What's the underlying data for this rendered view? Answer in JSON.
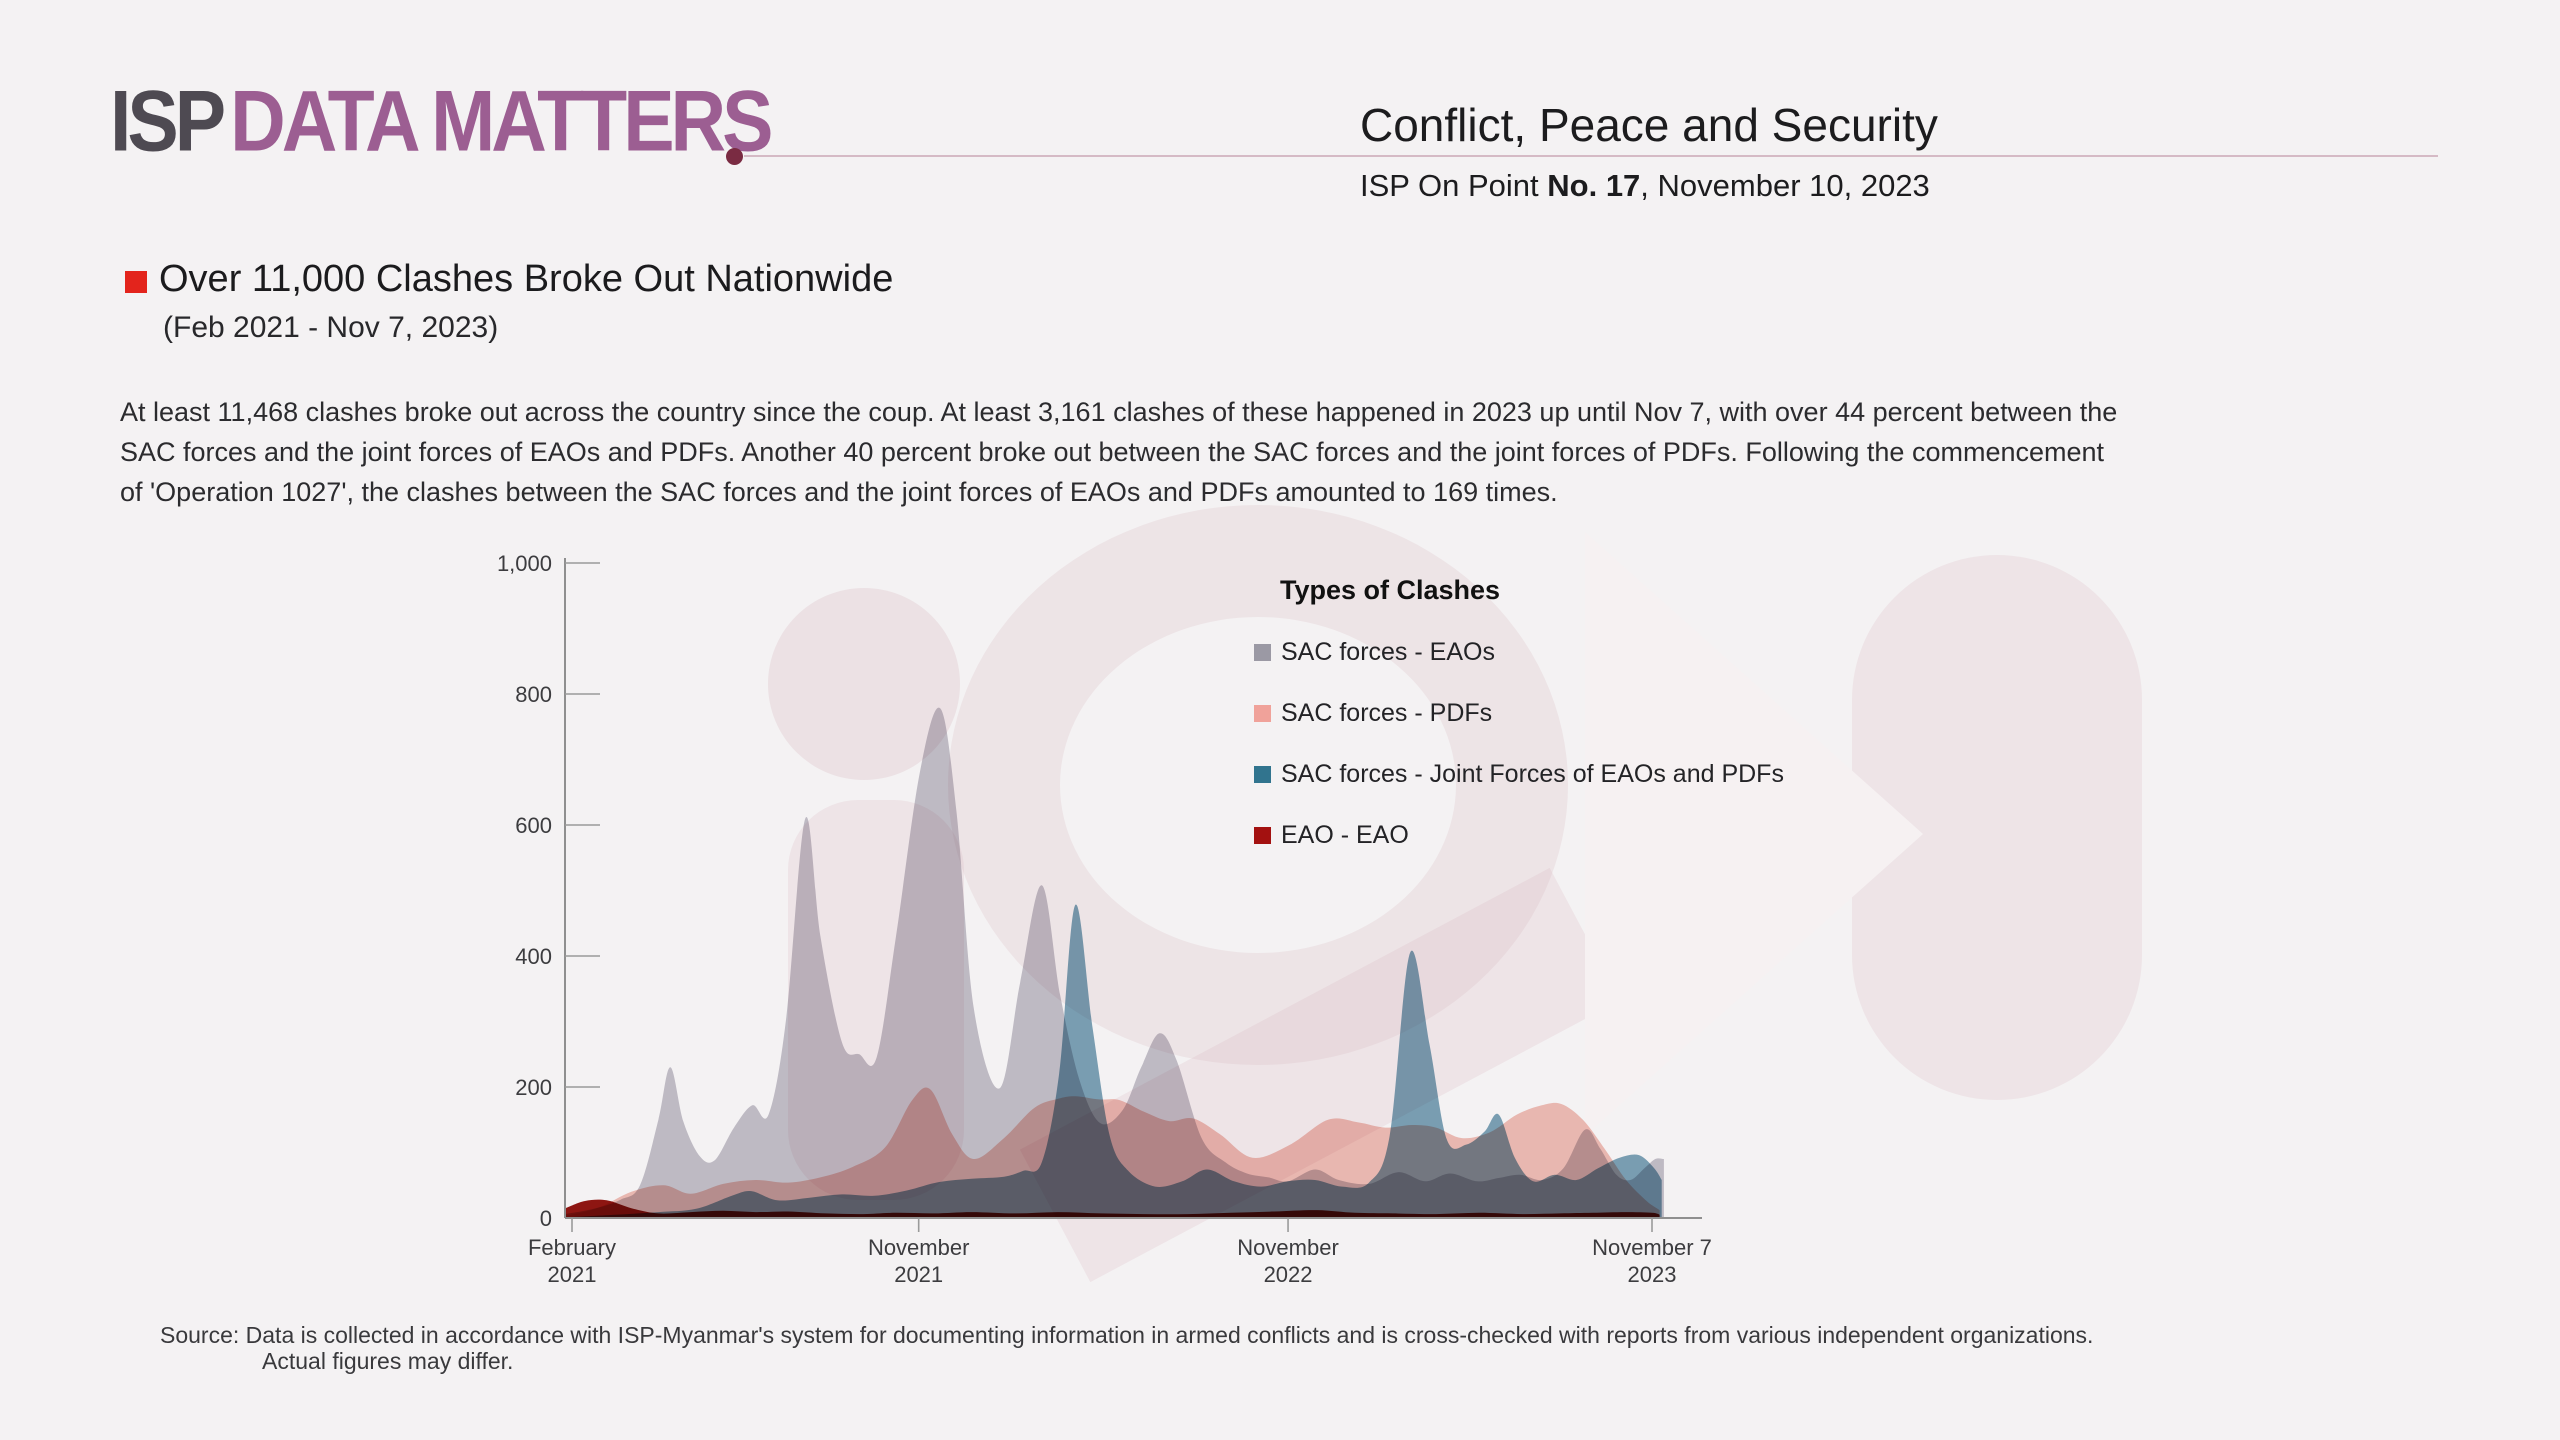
{
  "header": {
    "logo_isp": "ISP",
    "logo_rest": "DATA MATTERS",
    "topic": "Conflict, Peace and Security",
    "issue_prefix": "ISP On Point ",
    "issue_no": "No. 17",
    "issue_suffix": ", November 10, 2023"
  },
  "section": {
    "title": "Over 11,000 Clashes Broke Out Nationwide",
    "subtitle": "(Feb 2021 - Nov 7, 2023)"
  },
  "paragraph": {
    "line1": "At least 11,468 clashes broke out across the country since the coup. At least 3,161 clashes of these happened in 2023 up until Nov 7, with over 44 percent between the",
    "line2": "SAC forces and the joint forces of EAOs and PDFs. Another 40 percent broke out between the SAC forces and the joint forces of PDFs. Following the commencement",
    "line3": "of 'Operation 1027', the clashes between the SAC forces and the joint forces of EAOs and PDFs amounted to 169 times."
  },
  "source": {
    "line1": "Source: Data is collected in accordance with ISP-Myanmar's system for documenting information in armed conflicts and is cross-checked with reports from various independent organizations.",
    "line2": "Actual figures may differ."
  },
  "chart_data": {
    "type": "area",
    "legend_title": "Types of Clashes",
    "legend_position": "top-right",
    "grid": false,
    "ylim": [
      0,
      1000
    ],
    "y_axis_ticks": [
      {
        "value": 1000,
        "label": "1,000"
      },
      {
        "value": 800,
        "label": "800"
      },
      {
        "value": 600,
        "label": "600"
      },
      {
        "value": 400,
        "label": "400"
      },
      {
        "value": 200,
        "label": "200"
      },
      {
        "value": 0,
        "label": "0"
      }
    ],
    "x_axis_ticks": [
      {
        "pos": 0.0,
        "line1": "February",
        "line2": "2021"
      },
      {
        "pos": 0.321,
        "line1": "November",
        "line2": "2021"
      },
      {
        "pos": 0.663,
        "line1": "November",
        "line2": "2022"
      },
      {
        "pos": 1.0,
        "line1": "November 7",
        "line2": "2023"
      }
    ],
    "x_unit": "fraction of timeline Feb 2021 to Nov 7 2023",
    "y_unit": "number of clashes",
    "series": [
      {
        "name": "SAC forces - EAOs",
        "fill": "#c7c4cd",
        "legend_color": "#9b99a4",
        "points": [
          [
            -0.006,
            6
          ],
          [
            0.02,
            14
          ],
          [
            0.045,
            28
          ],
          [
            0.063,
            50
          ],
          [
            0.08,
            150
          ],
          [
            0.091,
            230
          ],
          [
            0.103,
            148
          ],
          [
            0.118,
            95
          ],
          [
            0.132,
            88
          ],
          [
            0.15,
            138
          ],
          [
            0.167,
            172
          ],
          [
            0.182,
            158
          ],
          [
            0.198,
            300
          ],
          [
            0.216,
            610
          ],
          [
            0.23,
            430
          ],
          [
            0.25,
            268
          ],
          [
            0.266,
            250
          ],
          [
            0.282,
            245
          ],
          [
            0.3,
            430
          ],
          [
            0.322,
            680
          ],
          [
            0.341,
            778
          ],
          [
            0.356,
            620
          ],
          [
            0.372,
            320
          ],
          [
            0.396,
            198
          ],
          [
            0.415,
            360
          ],
          [
            0.435,
            508
          ],
          [
            0.452,
            340
          ],
          [
            0.47,
            210
          ],
          [
            0.489,
            145
          ],
          [
            0.51,
            165
          ],
          [
            0.527,
            230
          ],
          [
            0.544,
            282
          ],
          [
            0.56,
            240
          ],
          [
            0.583,
            122
          ],
          [
            0.605,
            85
          ],
          [
            0.625,
            68
          ],
          [
            0.645,
            62
          ],
          [
            0.663,
            56
          ],
          [
            0.688,
            74
          ],
          [
            0.71,
            58
          ],
          [
            0.738,
            52
          ],
          [
            0.765,
            70
          ],
          [
            0.79,
            56
          ],
          [
            0.813,
            68
          ],
          [
            0.838,
            56
          ],
          [
            0.858,
            61
          ],
          [
            0.878,
            66
          ],
          [
            0.898,
            58
          ],
          [
            0.918,
            76
          ],
          [
            0.938,
            135
          ],
          [
            0.952,
            106
          ],
          [
            0.967,
            66
          ],
          [
            0.98,
            58
          ],
          [
            0.993,
            76
          ],
          [
            1.003,
            90
          ],
          [
            1.011,
            90
          ]
        ]
      },
      {
        "name": "SAC forces - PDFs",
        "fill": "#f3c1b9",
        "legend_color": "#f0a29a",
        "points": [
          [
            -0.006,
            3
          ],
          [
            0.025,
            16
          ],
          [
            0.055,
            40
          ],
          [
            0.085,
            50
          ],
          [
            0.11,
            37
          ],
          [
            0.14,
            52
          ],
          [
            0.17,
            58
          ],
          [
            0.2,
            54
          ],
          [
            0.23,
            62
          ],
          [
            0.26,
            78
          ],
          [
            0.29,
            108
          ],
          [
            0.315,
            180
          ],
          [
            0.332,
            196
          ],
          [
            0.352,
            128
          ],
          [
            0.372,
            90
          ],
          [
            0.4,
            122
          ],
          [
            0.428,
            168
          ],
          [
            0.45,
            182
          ],
          [
            0.466,
            186
          ],
          [
            0.488,
            181
          ],
          [
            0.507,
            180
          ],
          [
            0.53,
            162
          ],
          [
            0.553,
            148
          ],
          [
            0.575,
            152
          ],
          [
            0.6,
            128
          ],
          [
            0.63,
            92
          ],
          [
            0.665,
            112
          ],
          [
            0.7,
            150
          ],
          [
            0.728,
            146
          ],
          [
            0.753,
            138
          ],
          [
            0.778,
            142
          ],
          [
            0.8,
            138
          ],
          [
            0.824,
            122
          ],
          [
            0.85,
            131
          ],
          [
            0.875,
            158
          ],
          [
            0.898,
            172
          ],
          [
            0.916,
            174
          ],
          [
            0.936,
            150
          ],
          [
            0.956,
            106
          ],
          [
            0.976,
            58
          ],
          [
            0.995,
            26
          ],
          [
            1.007,
            12
          ]
        ]
      },
      {
        "name": "SAC forces - Joint Forces of EAOs and PDFs",
        "fill": "#7ea6ba",
        "legend_color": "#31748e",
        "points": [
          [
            -0.006,
            1
          ],
          [
            0.04,
            5
          ],
          [
            0.08,
            9
          ],
          [
            0.115,
            14
          ],
          [
            0.148,
            34
          ],
          [
            0.166,
            41
          ],
          [
            0.19,
            27
          ],
          [
            0.22,
            31
          ],
          [
            0.25,
            36
          ],
          [
            0.28,
            34
          ],
          [
            0.31,
            42
          ],
          [
            0.34,
            55
          ],
          [
            0.37,
            60
          ],
          [
            0.4,
            63
          ],
          [
            0.418,
            72
          ],
          [
            0.435,
            85
          ],
          [
            0.451,
            220
          ],
          [
            0.466,
            478
          ],
          [
            0.482,
            290
          ],
          [
            0.498,
            125
          ],
          [
            0.515,
            72
          ],
          [
            0.54,
            48
          ],
          [
            0.565,
            56
          ],
          [
            0.588,
            74
          ],
          [
            0.613,
            56
          ],
          [
            0.638,
            48
          ],
          [
            0.663,
            56
          ],
          [
            0.688,
            58
          ],
          [
            0.713,
            48
          ],
          [
            0.738,
            54
          ],
          [
            0.757,
            125
          ],
          [
            0.776,
            405
          ],
          [
            0.794,
            265
          ],
          [
            0.81,
            120
          ],
          [
            0.828,
            112
          ],
          [
            0.845,
            132
          ],
          [
            0.858,
            158
          ],
          [
            0.873,
            92
          ],
          [
            0.89,
            56
          ],
          [
            0.91,
            66
          ],
          [
            0.93,
            58
          ],
          [
            0.95,
            76
          ],
          [
            0.97,
            92
          ],
          [
            0.988,
            96
          ],
          [
            1.002,
            76
          ],
          [
            1.009,
            58
          ]
        ]
      },
      {
        "name": "EAO - EAO",
        "fill": "#941712",
        "legend_color": "#a31110",
        "points": [
          [
            -0.006,
            15
          ],
          [
            0.012,
            26
          ],
          [
            0.032,
            27
          ],
          [
            0.055,
            15
          ],
          [
            0.08,
            7
          ],
          [
            0.11,
            9
          ],
          [
            0.14,
            11
          ],
          [
            0.17,
            9
          ],
          [
            0.2,
            10
          ],
          [
            0.235,
            7
          ],
          [
            0.27,
            6
          ],
          [
            0.3,
            8
          ],
          [
            0.335,
            7
          ],
          [
            0.37,
            9
          ],
          [
            0.41,
            7
          ],
          [
            0.45,
            9
          ],
          [
            0.49,
            7
          ],
          [
            0.53,
            6
          ],
          [
            0.57,
            6
          ],
          [
            0.61,
            8
          ],
          [
            0.65,
            10
          ],
          [
            0.69,
            12
          ],
          [
            0.725,
            8
          ],
          [
            0.76,
            7
          ],
          [
            0.8,
            6
          ],
          [
            0.84,
            8
          ],
          [
            0.88,
            6
          ],
          [
            0.915,
            7
          ],
          [
            0.945,
            8
          ],
          [
            0.975,
            9
          ],
          [
            1.0,
            8
          ],
          [
            1.007,
            5
          ]
        ]
      }
    ]
  }
}
